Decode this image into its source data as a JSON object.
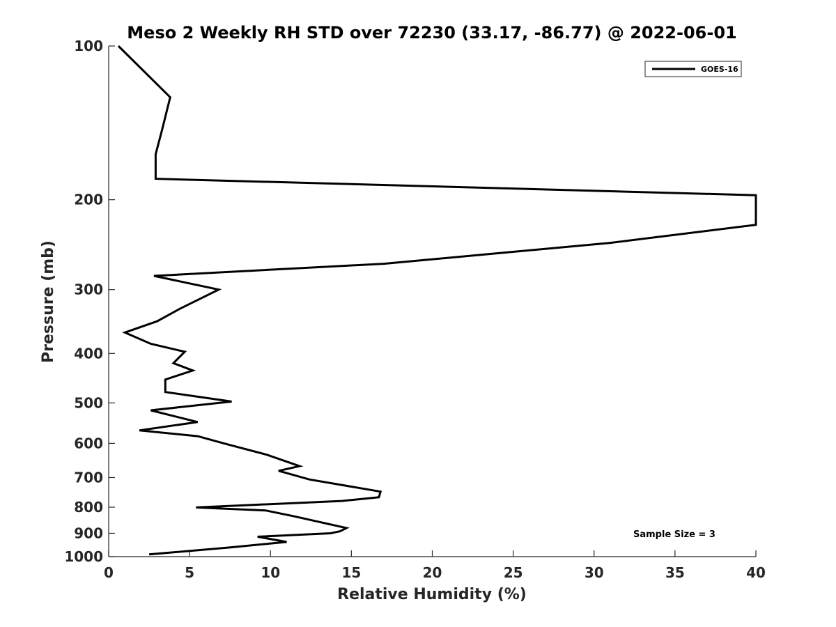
{
  "chart_data": {
    "type": "line",
    "title": "Meso 2 Weekly RH STD over 72230 (33.17, -86.77) @ 2022-06-01",
    "xlabel": "Relative Humidity (%)",
    "ylabel": "Pressure (mb)",
    "xlim": [
      0,
      40
    ],
    "ylim": [
      100,
      1000
    ],
    "yscale": "log",
    "yreversed": true,
    "x_ticks": [
      0,
      5,
      10,
      15,
      20,
      25,
      30,
      35,
      40
    ],
    "x_tick_labels": [
      "0",
      "5",
      "10",
      "15",
      "20",
      "25",
      "30",
      "35",
      "40"
    ],
    "y_ticks": [
      100,
      200,
      300,
      400,
      500,
      600,
      700,
      800,
      900,
      1000
    ],
    "y_tick_labels": [
      "100",
      "200",
      "300",
      "400",
      "500",
      "600",
      "700",
      "800",
      "900",
      "1000"
    ],
    "grid": false,
    "legend_position": "top-right",
    "annotation": "Sample Size = 3",
    "line_color": "#000000",
    "series": [
      {
        "name": "GOES-16",
        "rh": [
          0.6,
          3.8,
          3.3,
          2.9,
          2.9,
          40,
          40,
          31,
          17,
          2.8,
          6.8,
          4.4,
          3.0,
          1.0,
          2.6,
          4.7,
          4.0,
          5.2,
          3.5,
          3.5,
          7.6,
          2.6,
          5.5,
          1.9,
          5.5,
          7.2,
          9.8,
          11.8,
          10.5,
          12.4,
          16.8,
          16.7,
          14.4,
          5.4,
          9.7,
          11.4,
          14.7,
          14.3,
          13.7,
          9.2,
          11.0,
          7.4,
          2.5
        ],
        "pressure": [
          100,
          126,
          146,
          163,
          182,
          196,
          224,
          243,
          267,
          282,
          300,
          327,
          346,
          364,
          383,
          397,
          418,
          432,
          450,
          476,
          497,
          517,
          545,
          566,
          581,
          601,
          632,
          665,
          679,
          706,
          746,
          765,
          778,
          801,
          812,
          833,
          879,
          892,
          900,
          914,
          936,
          960,
          990
        ]
      }
    ]
  }
}
